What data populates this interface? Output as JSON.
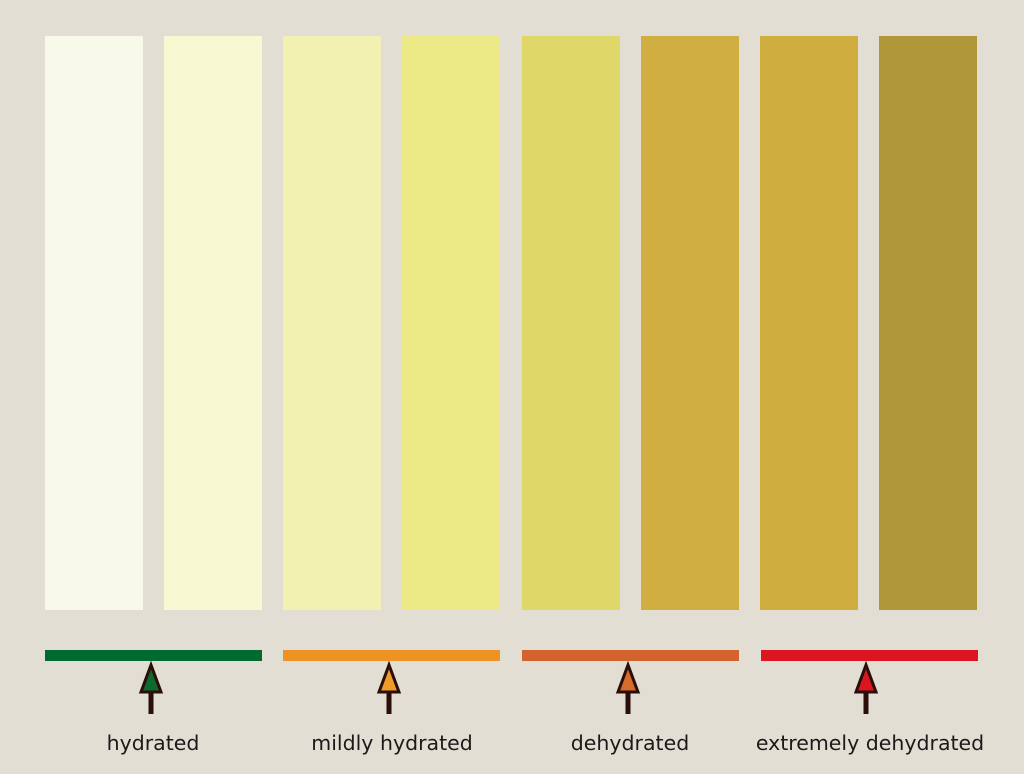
{
  "background_color": "#e3ded3",
  "swatches": [
    {
      "color": "#f8f9e9"
    },
    {
      "color": "#f8f8d2"
    },
    {
      "color": "#f3f1b2"
    },
    {
      "color": "#ebe986"
    },
    {
      "color": "#dfd869"
    },
    {
      "color": "#d1ae41"
    },
    {
      "color": "#cfad3e"
    },
    {
      "color": "#b0973a"
    }
  ],
  "categories": [
    {
      "label": "hydrated",
      "bar_color": "#006a30",
      "arrow_color": "#0d6a2f",
      "arrow_outline": "#2a0e0a"
    },
    {
      "label": "mildly hydrated",
      "bar_color": "#ef9224",
      "arrow_color": "#f09a2a",
      "arrow_outline": "#2a0e0a"
    },
    {
      "label": "dehydrated",
      "bar_color": "#d3632e",
      "arrow_color": "#d76b2b",
      "arrow_outline": "#2a0e0a"
    },
    {
      "label": "extremely dehydrated",
      "bar_color": "#dc1620",
      "arrow_color": "#dc1620",
      "arrow_outline": "#2a0e0a"
    }
  ]
}
